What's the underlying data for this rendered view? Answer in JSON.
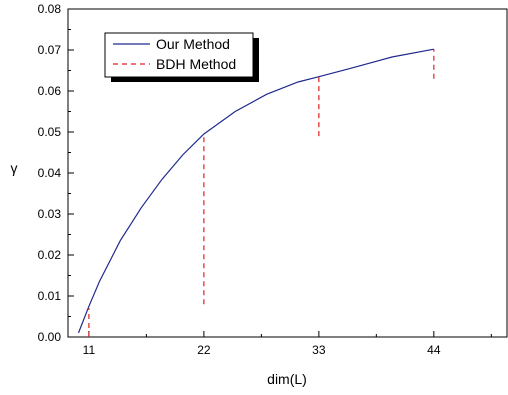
{
  "chart_data": {
    "type": "line",
    "title": "",
    "xlabel": "dim(L)",
    "ylabel": "γ",
    "xlim": [
      9,
      51
    ],
    "ylim": [
      0,
      0.08
    ],
    "xticks": [
      11,
      22,
      33,
      44
    ],
    "xtick_labels": [
      "11",
      "22",
      "33",
      "44"
    ],
    "yticks": [
      0,
      0.01,
      0.02,
      0.03,
      0.04,
      0.05,
      0.06,
      0.07,
      0.08
    ],
    "ytick_labels": [
      "0.00",
      "0.01",
      "0.02",
      "0.03",
      "0.04",
      "0.05",
      "0.06",
      "0.07",
      "0.08"
    ],
    "grid": false,
    "legend_position": "top-left",
    "series": [
      {
        "name": "Our Method",
        "style": "solid line",
        "color": "#1f2a8c",
        "x": [
          10,
          11,
          12,
          14,
          16,
          18,
          20,
          22,
          25,
          28,
          31,
          33,
          36,
          40,
          44
        ],
        "y": [
          0.001,
          0.0075,
          0.0135,
          0.0235,
          0.0315,
          0.0385,
          0.0445,
          0.0495,
          0.055,
          0.0592,
          0.0622,
          0.0635,
          0.0655,
          0.0683,
          0.0702
        ]
      },
      {
        "name": "BDH Method",
        "style": "dashed vertical segments",
        "color": "#e02020",
        "segments": [
          {
            "x": 11,
            "y_low": 0.0,
            "y_high": 0.007
          },
          {
            "x": 22,
            "y_low": 0.008,
            "y_high": 0.0495
          },
          {
            "x": 33,
            "y_low": 0.049,
            "y_high": 0.0635
          },
          {
            "x": 44,
            "y_low": 0.063,
            "y_high": 0.0702
          }
        ]
      }
    ]
  }
}
